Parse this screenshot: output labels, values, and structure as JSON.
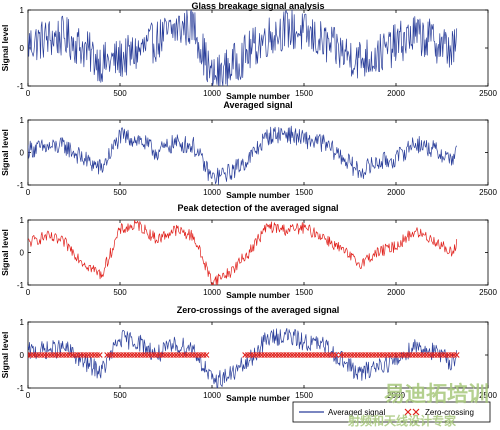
{
  "chart_data": [
    {
      "type": "line",
      "title": "Glass breakage signal analysis",
      "xlabel": "Sample number",
      "ylabel": "Signal level",
      "xlim": [
        0,
        2500
      ],
      "ylim": [
        -1,
        1
      ],
      "xticks": [
        "0",
        "500",
        "1000",
        "1500",
        "2000",
        "2500"
      ],
      "yticks": [
        "-1",
        "0",
        "1"
      ],
      "series": [
        {
          "color": "#2b3f9a",
          "noise": 0.55,
          "x": [
            0,
            100,
            200,
            300,
            400,
            500,
            600,
            700,
            800,
            900,
            1000,
            1100,
            1200,
            1300,
            1400,
            1500,
            1600,
            1700,
            1800,
            1900,
            2000,
            2100,
            2200,
            2300,
            2330
          ],
          "y": [
            0.1,
            0.25,
            0.3,
            0.0,
            -0.4,
            -0.3,
            -0.1,
            0.2,
            0.5,
            0.6,
            -0.8,
            -0.5,
            -0.1,
            0.3,
            0.5,
            0.4,
            0.15,
            -0.1,
            -0.3,
            -0.2,
            0.1,
            0.35,
            0.2,
            -0.05,
            0.05
          ]
        }
      ]
    },
    {
      "type": "line",
      "title": "Averaged signal",
      "xlabel": "Sample number",
      "ylabel": "Signal level",
      "xlim": [
        0,
        2500
      ],
      "ylim": [
        -1,
        1
      ],
      "xticks": [
        "0",
        "500",
        "1000",
        "1500",
        "2000",
        "2500"
      ],
      "yticks": [
        "-1",
        "0",
        "1"
      ],
      "series": [
        {
          "color": "#2b3f9a",
          "noise": 0.28,
          "x": [
            0,
            100,
            200,
            300,
            400,
            500,
            600,
            700,
            800,
            900,
            1000,
            1100,
            1200,
            1300,
            1400,
            1500,
            1600,
            1700,
            1800,
            1900,
            2000,
            2100,
            2200,
            2300,
            2330
          ],
          "y": [
            0.1,
            0.15,
            0.2,
            -0.2,
            -0.5,
            0.5,
            0.4,
            0.0,
            0.3,
            0.2,
            -0.8,
            -0.6,
            -0.2,
            0.5,
            0.6,
            0.4,
            0.3,
            -0.1,
            -0.6,
            -0.3,
            -0.2,
            0.3,
            0.1,
            -0.2,
            0.0
          ]
        }
      ]
    },
    {
      "type": "line",
      "title": "Peak detection of the averaged signal",
      "xlabel": "Sample number",
      "ylabel": "Signal level",
      "xlim": [
        0,
        2500
      ],
      "ylim": [
        -1,
        1
      ],
      "xticks": [
        "0",
        "500",
        "1000",
        "1500",
        "2000",
        "2500"
      ],
      "yticks": [
        "-1",
        "0",
        "1"
      ],
      "series": [
        {
          "color": "#e0201b",
          "noise": 0.18,
          "x": [
            0,
            100,
            200,
            300,
            400,
            500,
            600,
            700,
            800,
            900,
            1000,
            1100,
            1200,
            1300,
            1400,
            1500,
            1600,
            1700,
            1800,
            1900,
            2000,
            2100,
            2200,
            2300,
            2330
          ],
          "y": [
            0.3,
            0.5,
            0.3,
            -0.3,
            -0.7,
            0.7,
            0.85,
            0.4,
            0.7,
            0.5,
            -0.9,
            -0.6,
            0.0,
            0.8,
            0.7,
            0.75,
            0.5,
            0.1,
            -0.35,
            0.0,
            0.2,
            0.65,
            0.4,
            0.0,
            0.3
          ]
        }
      ]
    },
    {
      "type": "line",
      "title": "Zero-crossings of the averaged signal",
      "xlabel": "Sample number",
      "ylabel": "Signal level",
      "xlim": [
        0,
        2500
      ],
      "ylim": [
        -1,
        1
      ],
      "xticks": [
        "0",
        "500",
        "1000",
        "1500",
        "2000",
        "2500"
      ],
      "yticks": [
        "-1",
        "0",
        "1"
      ],
      "series": [
        {
          "name": "Averaged signal",
          "color": "#2b3f9a",
          "noise": 0.28,
          "x": [
            0,
            100,
            200,
            300,
            400,
            500,
            600,
            700,
            800,
            900,
            1000,
            1100,
            1200,
            1300,
            1400,
            1500,
            1600,
            1700,
            1800,
            1900,
            2000,
            2100,
            2200,
            2300,
            2330
          ],
          "y": [
            0.1,
            0.15,
            0.2,
            -0.2,
            -0.5,
            0.5,
            0.4,
            0.0,
            0.3,
            0.2,
            -0.8,
            -0.6,
            -0.2,
            0.5,
            0.6,
            0.4,
            0.3,
            -0.1,
            -0.6,
            -0.3,
            -0.2,
            0.3,
            0.1,
            -0.2,
            0.0
          ]
        },
        {
          "name": "Zero-crossing",
          "color": "#e0201b",
          "marker": "x",
          "y": 0,
          "x_ranges": [
            [
              0,
              390
            ],
            [
              430,
              980
            ],
            [
              1180,
              1680
            ],
            [
              1700,
              2330
            ]
          ],
          "step": 15
        }
      ],
      "legend": {
        "placement": "bottom-right, below plot",
        "entries": [
          "Averaged signal",
          "Zero-crossing"
        ]
      }
    }
  ],
  "watermark": {
    "line1": "易迪拓培训",
    "line2": "射频和天线设计专家"
  }
}
